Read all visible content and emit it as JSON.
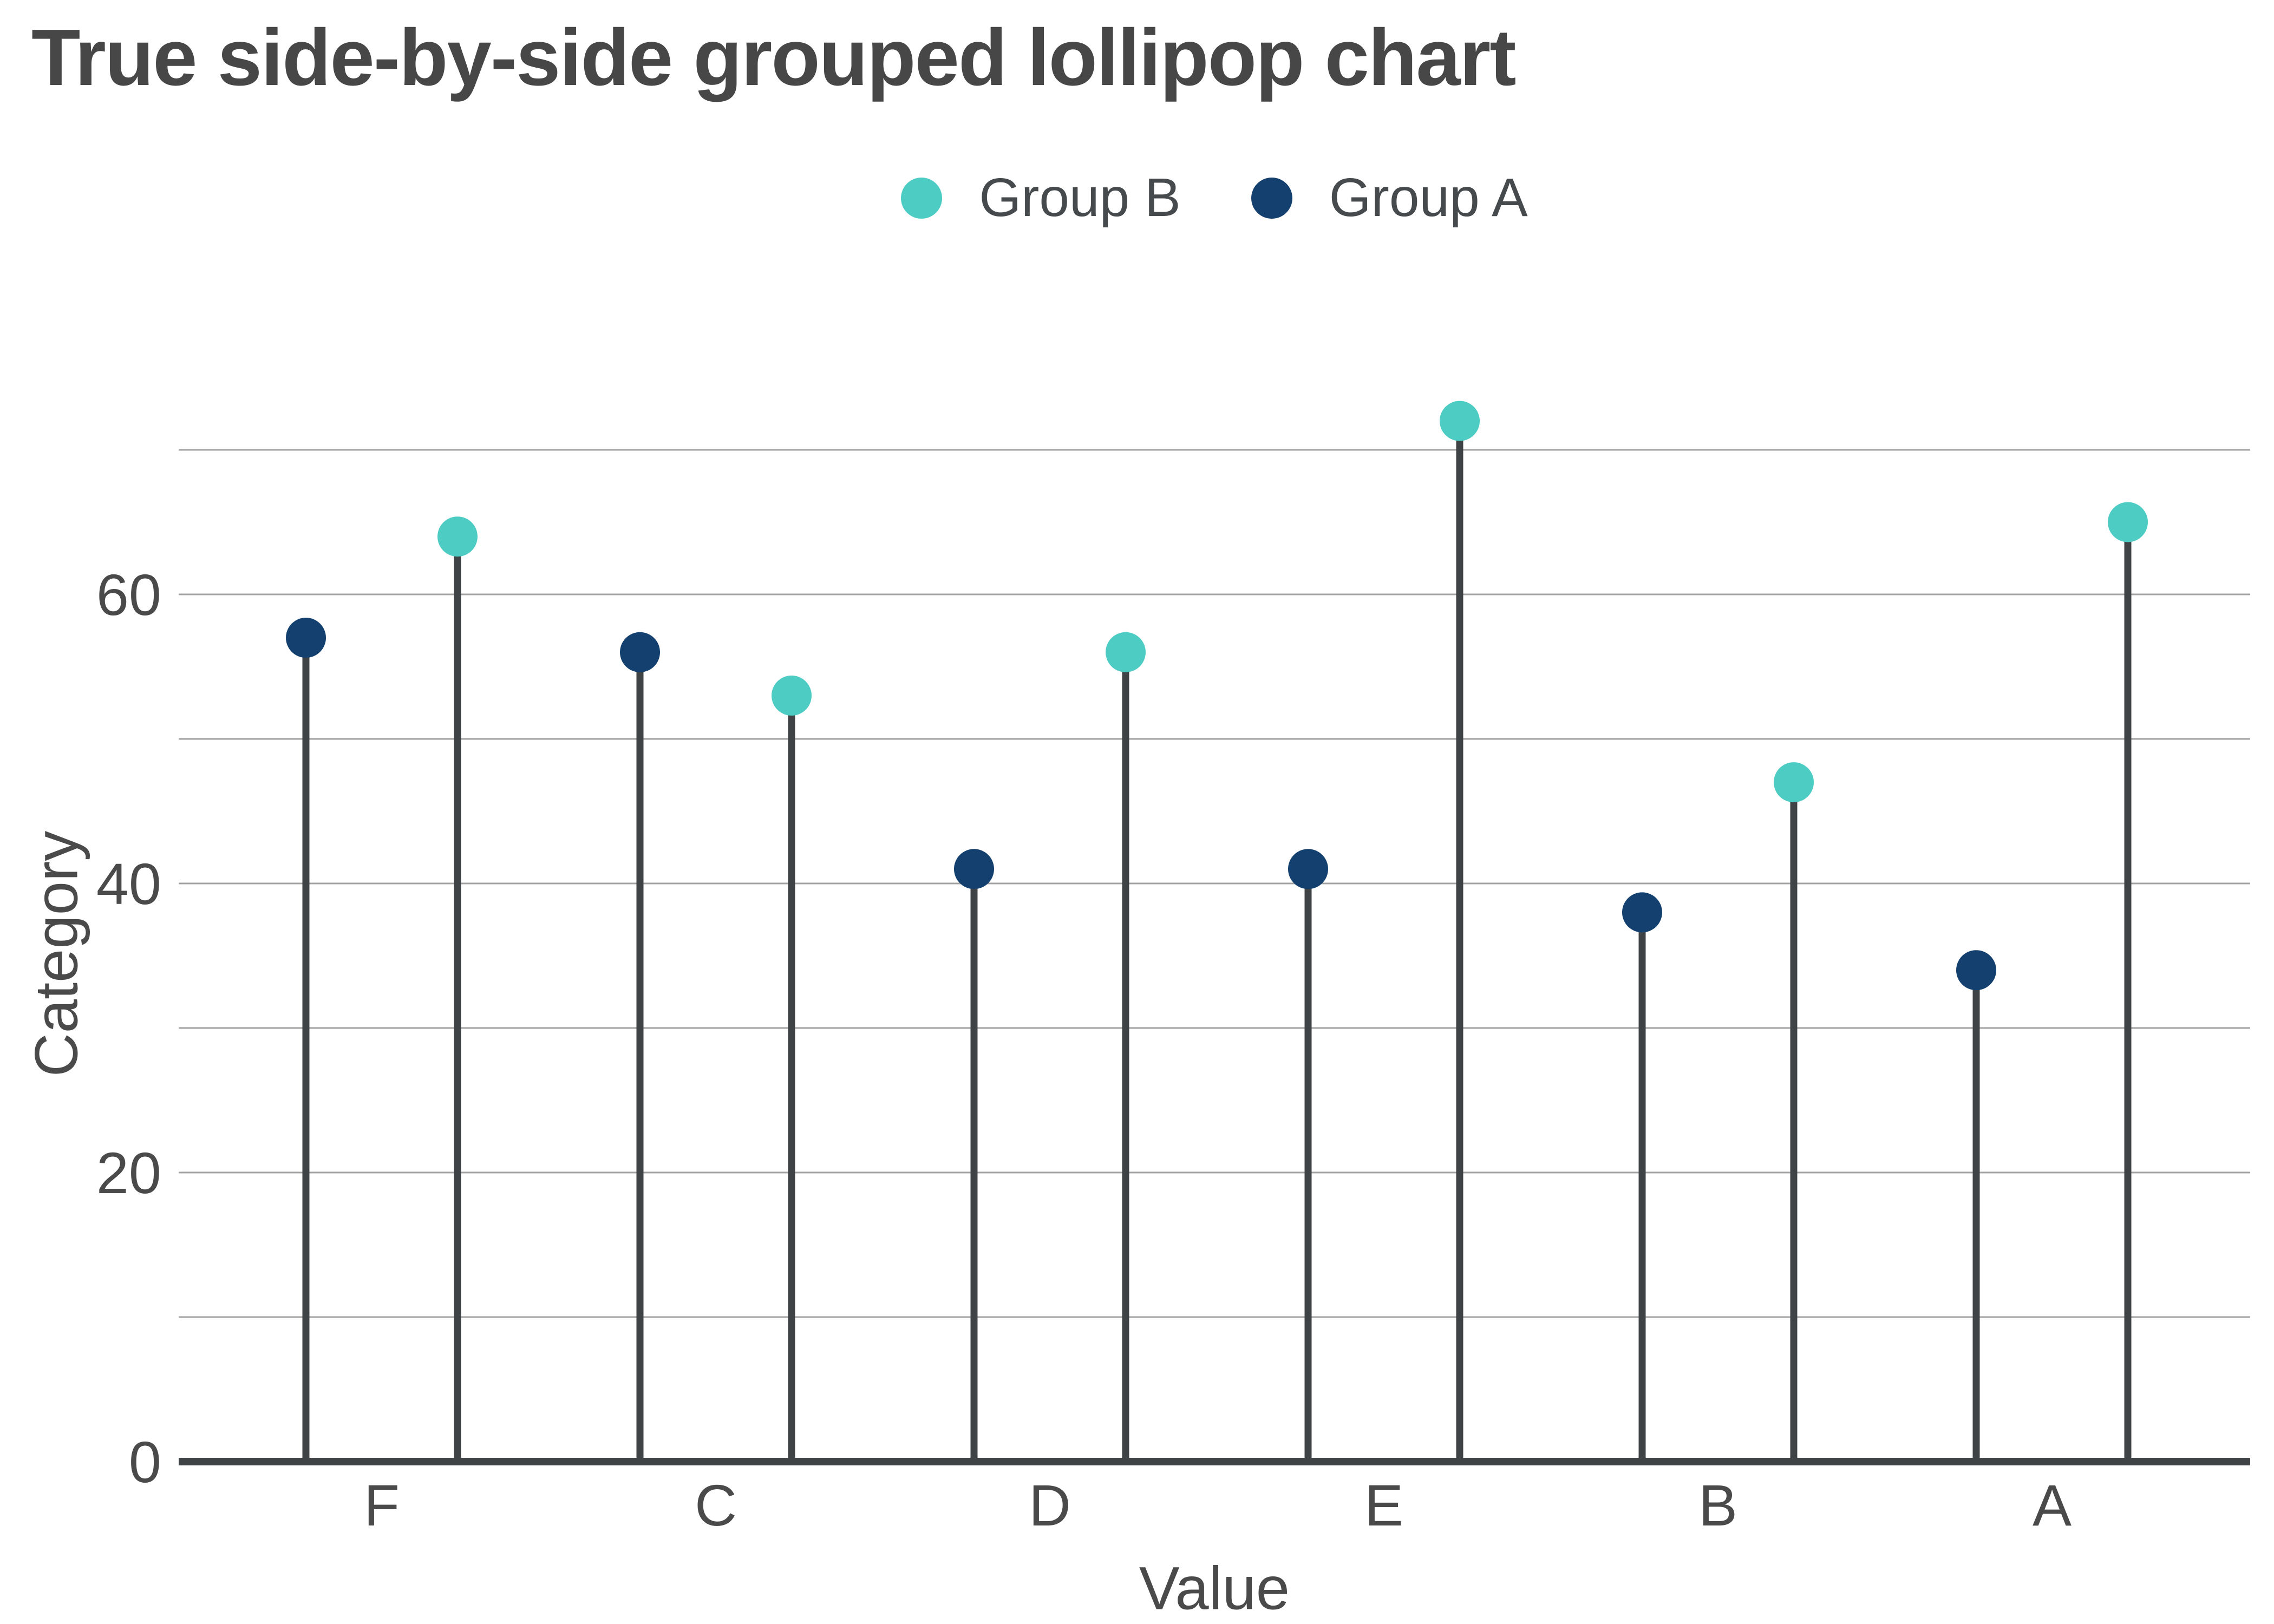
{
  "chart_data": {
    "type": "lollipop",
    "variant": "grouped-side-by-side",
    "title": "True side-by-side grouped lollipop chart",
    "xlabel": "Value",
    "ylabel": "Category",
    "categories": [
      "F",
      "C",
      "D",
      "E",
      "B",
      "A"
    ],
    "series": [
      {
        "name": "Group A",
        "color": "#13406E",
        "side": "left",
        "values": [
          57,
          56,
          41,
          41,
          38,
          34
        ]
      },
      {
        "name": "Group B",
        "color": "#4DCCC4",
        "side": "right",
        "values": [
          64,
          53,
          56,
          72,
          47,
          65
        ]
      }
    ],
    "legend": {
      "position": "top-center",
      "items": [
        {
          "label": "Group B",
          "color": "#4DCCC4"
        },
        {
          "label": "Group A",
          "color": "#13406E"
        }
      ]
    },
    "yticks": [
      0,
      20,
      40,
      60
    ],
    "gridline_values": [
      10,
      20,
      30,
      40,
      50,
      60,
      70
    ],
    "ylim": [
      0,
      74
    ],
    "grid": "horizontal-only",
    "colors": {
      "stem": "#404346",
      "axis": "#404346",
      "gridline": "#a2a2a2",
      "tick_text": "#4a4a4a",
      "title_text": "#474747"
    }
  }
}
